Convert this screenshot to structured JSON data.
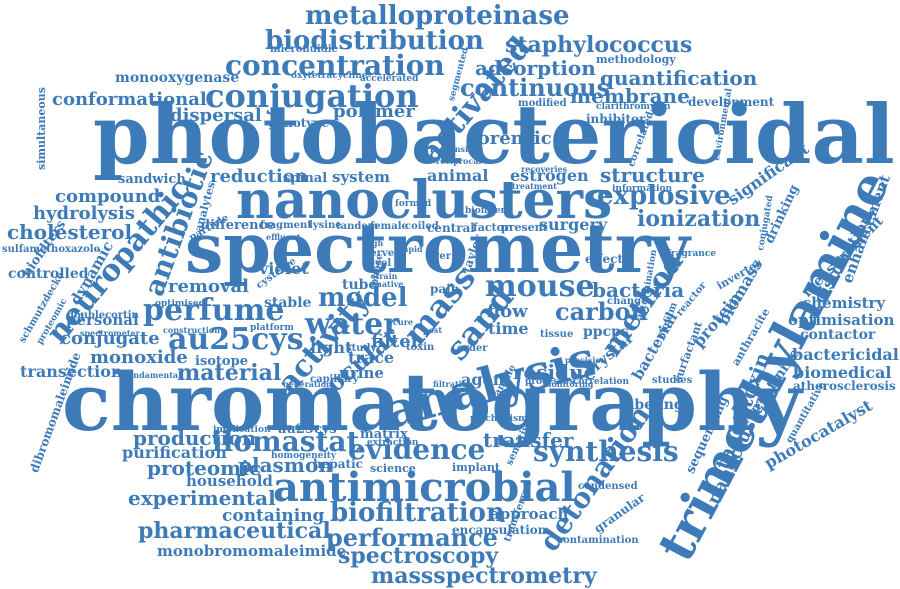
{
  "accent_color": "#3d7ab8",
  "words": [
    {
      "text": "photobactericidal",
      "weight": 10
    },
    {
      "text": "chromatography",
      "weight": 10
    },
    {
      "text": "spectrometry",
      "weight": 10
    },
    {
      "text": "trimethylamine",
      "weight": 9
    },
    {
      "text": "nanoclusters",
      "weight": 8
    },
    {
      "text": "analysis",
      "weight": 7
    },
    {
      "text": "antimicrobial",
      "weight": 6
    },
    {
      "text": "metalloproteinase",
      "weight": 4
    },
    {
      "text": "biodistribution",
      "weight": 4
    },
    {
      "text": "concentration",
      "weight": 4
    },
    {
      "text": "conjugation",
      "weight": 4
    },
    {
      "text": "staphylococcus",
      "weight": 3
    },
    {
      "text": "activated",
      "weight": 4
    },
    {
      "text": "adsorption",
      "weight": 3
    },
    {
      "text": "continuous",
      "weight": 3
    },
    {
      "text": "quantification",
      "weight": 3
    },
    {
      "text": "conformational",
      "weight": 3
    },
    {
      "text": "membrane",
      "weight": 3
    },
    {
      "text": "dispersal",
      "weight": 3
    },
    {
      "text": "polymer",
      "weight": 3
    },
    {
      "text": "forensic",
      "weight": 3
    },
    {
      "text": "neuropathic",
      "weight": 4
    },
    {
      "text": "antibiotic",
      "weight": 4
    },
    {
      "text": "explosive",
      "weight": 4
    },
    {
      "text": "structure",
      "weight": 3
    },
    {
      "text": "ionization",
      "weight": 3
    },
    {
      "text": "perfume",
      "weight": 4
    },
    {
      "text": "au25cys",
      "weight": 4
    },
    {
      "text": "mass",
      "weight": 4
    },
    {
      "text": "sand",
      "weight": 4
    },
    {
      "text": "mouse",
      "weight": 4
    },
    {
      "text": "water",
      "weight": 4
    },
    {
      "text": "model",
      "weight": 4
    },
    {
      "text": "activity",
      "weight": 4
    },
    {
      "text": "ocular",
      "weight": 3
    },
    {
      "text": "method",
      "weight": 4
    },
    {
      "text": "bacteria",
      "weight": 3
    },
    {
      "text": "carbon",
      "weight": 3
    },
    {
      "text": "material",
      "weight": 3
    },
    {
      "text": "ilomastat",
      "weight": 4
    },
    {
      "text": "evidence",
      "weight": 4
    },
    {
      "text": "synthesis",
      "weight": 4
    },
    {
      "text": "detonation",
      "weight": 4
    },
    {
      "text": "tagetitoxin",
      "weight": 3
    },
    {
      "text": "nanocluster",
      "weight": 3
    },
    {
      "text": "biofiltration",
      "weight": 4
    },
    {
      "text": "performance",
      "weight": 4
    },
    {
      "text": "pharmaceutical",
      "weight": 3
    },
    {
      "text": "spectroscopy",
      "weight": 3
    },
    {
      "text": "massspectrometry",
      "weight": 3
    },
    {
      "text": "experimental",
      "weight": 3
    },
    {
      "text": "production",
      "weight": 3
    },
    {
      "text": "proteomic",
      "weight": 3
    },
    {
      "text": "plasmon",
      "weight": 3
    },
    {
      "text": "transfer",
      "weight": 3
    },
    {
      "text": "residue",
      "weight": 3
    },
    {
      "text": "transection",
      "weight": 2
    },
    {
      "text": "conjugate",
      "weight": 2
    },
    {
      "text": "monoxide",
      "weight": 2
    },
    {
      "text": "removal",
      "weight": 2
    },
    {
      "text": "reduction",
      "weight": 2
    },
    {
      "text": "compound",
      "weight": 2
    },
    {
      "text": "hydrolysis",
      "weight": 2
    },
    {
      "text": "cholesterol",
      "weight": 2
    },
    {
      "text": "controlled",
      "weight": 2
    },
    {
      "text": "personal",
      "weight": 2
    },
    {
      "text": "purification",
      "weight": 2
    },
    {
      "text": "household",
      "weight": 2
    },
    {
      "text": "containing",
      "weight": 2
    },
    {
      "text": "monobromomaleimide",
      "weight": 2
    },
    {
      "text": "bactericidal",
      "weight": 2
    },
    {
      "text": "biomedical",
      "weight": 2
    },
    {
      "text": "atherosclerosis",
      "weight": 2
    },
    {
      "text": "optimisation",
      "weight": 2
    },
    {
      "text": "chemistry",
      "weight": 2
    },
    {
      "text": "photocatalyst",
      "weight": 2
    },
    {
      "text": "significant",
      "weight": 2
    },
    {
      "text": "estrogen",
      "weight": 2
    },
    {
      "text": "animal",
      "weight": 2
    },
    {
      "text": "system",
      "weight": 2
    },
    {
      "text": "spinal",
      "weight": 2
    },
    {
      "text": "sandwich",
      "weight": 2
    },
    {
      "text": "genotype",
      "weight": 2
    },
    {
      "text": "monooxygenase",
      "weight": 2
    },
    {
      "text": "microfluidic",
      "weight": 1
    },
    {
      "text": "development",
      "weight": 1
    },
    {
      "text": "inhibitor",
      "weight": 1
    },
    {
      "text": "methodology",
      "weight": 1
    },
    {
      "text": "accelerated",
      "weight": 1
    },
    {
      "text": "oxytetracycline",
      "weight": 1
    },
    {
      "text": "clarithromycin",
      "weight": 1
    },
    {
      "text": "modified",
      "weight": 1
    },
    {
      "text": "surgery",
      "weight": 2
    },
    {
      "text": "flow",
      "weight": 2
    },
    {
      "text": "filter",
      "weight": 2
    },
    {
      "text": "time",
      "weight": 2
    },
    {
      "text": "tube",
      "weight": 2
    },
    {
      "text": "light",
      "weight": 2
    },
    {
      "text": "trace",
      "weight": 2
    },
    {
      "text": "urine",
      "weight": 2
    },
    {
      "text": "agent",
      "weight": 2
    },
    {
      "text": "crystal",
      "weight": 2
    },
    {
      "text": "ppcps",
      "weight": 2
    },
    {
      "text": "protein",
      "weight": 2
    },
    {
      "text": "biomass",
      "weight": 2
    },
    {
      "text": "bacterial",
      "weight": 2
    },
    {
      "text": "matrix",
      "weight": 2
    },
    {
      "text": "hepatic",
      "weight": 2
    },
    {
      "text": "science",
      "weight": 1
    },
    {
      "text": "implant",
      "weight": 1
    },
    {
      "text": "approach",
      "weight": 2
    },
    {
      "text": "encapsulation",
      "weight": 1
    },
    {
      "text": "contamination",
      "weight": 1
    },
    {
      "text": "granular",
      "weight": 1
    },
    {
      "text": "labeling",
      "weight": 2
    },
    {
      "text": "sequencing",
      "weight": 2
    },
    {
      "text": "creatinine",
      "weight": 2
    },
    {
      "text": "drinking",
      "weight": 2
    },
    {
      "text": "measurement",
      "weight": 2
    },
    {
      "text": "enhancement",
      "weight": 2
    },
    {
      "text": "distribution",
      "weight": 2
    },
    {
      "text": "contactor",
      "weight": 2
    },
    {
      "text": "quantitative",
      "weight": 1
    },
    {
      "text": "inverter",
      "weight": 1
    },
    {
      "text": "fragrance",
      "weight": 1
    },
    {
      "text": "reactor",
      "weight": 1
    },
    {
      "text": "surfactant",
      "weight": 1
    },
    {
      "text": "studies",
      "weight": 1
    },
    {
      "text": "biofilm",
      "weight": 1
    },
    {
      "text": "anthracite",
      "weight": 1
    },
    {
      "text": "violet",
      "weight": 2
    },
    {
      "text": "stable",
      "weight": 2
    },
    {
      "text": "cysteine",
      "weight": 1
    },
    {
      "text": "difference",
      "weight": 2
    },
    {
      "text": "isotope",
      "weight": 2
    },
    {
      "text": "fragment",
      "weight": 1
    },
    {
      "text": "lysine",
      "weight": 1
    },
    {
      "text": "particle",
      "weight": 1
    },
    {
      "text": "dynamic",
      "weight": 2
    },
    {
      "text": "biofilters",
      "weight": 2
    },
    {
      "text": "sulfamethoxazole",
      "weight": 1
    },
    {
      "text": "schmutzdecke",
      "weight": 1
    },
    {
      "text": "doublecortin",
      "weight": 1
    },
    {
      "text": "dibromomaleimide",
      "weight": 1
    },
    {
      "text": "simultaneous",
      "weight": 1
    },
    {
      "text": "au25cys",
      "weight": 2
    },
    {
      "text": "implication",
      "weight": 1
    },
    {
      "text": "homogeneity",
      "weight": 1
    },
    {
      "text": "correlation",
      "weight": 1
    },
    {
      "text": "processes",
      "weight": 1
    },
    {
      "text": "condensed",
      "weight": 1
    },
    {
      "text": "mechanism",
      "weight": 1
    },
    {
      "text": "effect",
      "weight": 1
    },
    {
      "text": "change",
      "weight": 1
    },
    {
      "text": "nerve",
      "weight": 1
    },
    {
      "text": "level",
      "weight": 1
    },
    {
      "text": "liver",
      "weight": 1
    },
    {
      "text": "central",
      "weight": 1
    },
    {
      "text": "coiled",
      "weight": 1
    },
    {
      "text": "female",
      "weight": 1
    },
    {
      "text": "tandem",
      "weight": 1
    },
    {
      "text": "factor",
      "weight": 1
    },
    {
      "text": "present",
      "weight": 1
    },
    {
      "text": "platform",
      "weight": 1
    },
    {
      "text": "study",
      "weight": 1
    },
    {
      "text": "toxin",
      "weight": 1
    },
    {
      "text": "capillary",
      "weight": 1
    },
    {
      "text": "taylor",
      "weight": 1
    },
    {
      "text": "pain",
      "weight": 1
    },
    {
      "text": "phase",
      "weight": 1
    },
    {
      "text": "fundamental",
      "weight": 1
    },
    {
      "text": "construction",
      "weight": 1
    },
    {
      "text": "optimised",
      "weight": 1
    },
    {
      "text": "analytes",
      "weight": 1
    },
    {
      "text": "extraction",
      "weight": 1
    },
    {
      "text": "generation",
      "weight": 1
    },
    {
      "text": "filtration",
      "weight": 1
    },
    {
      "text": "tissue",
      "weight": 1
    },
    {
      "text": "order",
      "weight": 1
    },
    {
      "text": "sample",
      "weight": 1
    },
    {
      "text": "sensitive",
      "weight": 1
    },
    {
      "text": "transferred",
      "weight": 1
    },
    {
      "text": "conjugated",
      "weight": 1
    },
    {
      "text": "correlated",
      "weight": 1
    },
    {
      "text": "information",
      "weight": 1
    },
    {
      "text": "determination",
      "weight": 1
    },
    {
      "text": "environmental",
      "weight": 1
    },
    {
      "text": "precision",
      "weight": 1
    },
    {
      "text": "monitoring",
      "weight": 1
    },
    {
      "text": "spectrometer",
      "weight": 1
    },
    {
      "text": "proteomic",
      "weight": 1
    },
    {
      "text": "responsible",
      "weight": 1
    },
    {
      "text": "reciprocal",
      "weight": 1
    },
    {
      "text": "treatment",
      "weight": 1
    },
    {
      "text": "formed",
      "weight": 1
    },
    {
      "text": "biofilter",
      "weight": 1
    },
    {
      "text": "native",
      "weight": 1
    },
    {
      "text": "strain",
      "weight": 1
    },
    {
      "text": "high",
      "weight": 1
    },
    {
      "text": "cure",
      "weight": 1
    },
    {
      "text": "rapid",
      "weight": 1
    },
    {
      "text": "post",
      "weight": 1
    },
    {
      "text": "effluent",
      "weight": 1
    },
    {
      "text": "segmented",
      "weight": 1
    },
    {
      "text": "recoveries",
      "weight": 1
    }
  ]
}
